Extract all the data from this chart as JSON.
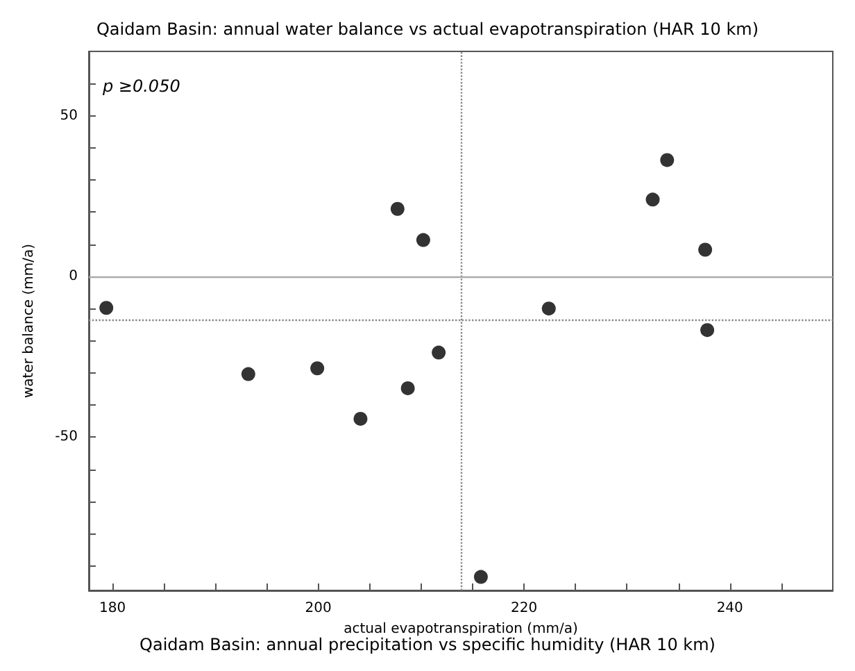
{
  "chart_data": {
    "type": "scatter",
    "title": "Qaidam Basin: annual water balance vs actual evapotranspiration (HAR 10 km)",
    "xlabel": "actual evapotranspiration (mm/a)",
    "ylabel": "water balance (mm/a)",
    "annotations": [
      "p ≥0.050",
      "Qaidam Basin: annual precipitation vs specific humidity (HAR 10 km)"
    ],
    "x": [
      179.4,
      193.2,
      199.9,
      204.1,
      207.7,
      208.7,
      210.2,
      211.7,
      215.8,
      222.4,
      232.5,
      233.9,
      237.6,
      237.8
    ],
    "series": [
      {
        "color": "#000000",
        "values": [
          -9.8,
          -30.4,
          -28.6,
          -44.3,
          21.0,
          -34.8,
          11.3,
          -23.7,
          -93.5,
          -10.0,
          23.9,
          36.2,
          8.3,
          -16.7
        ]
      }
    ],
    "xlim": [
      177.7,
      250
    ],
    "ylim": [
      -97.7,
      70
    ],
    "xticks": [
      180,
      {
        "value": 185,
        "label": null
      },
      {
        "value": 190,
        "label": null
      },
      {
        "value": 195,
        "label": null
      },
      200,
      {
        "value": 205,
        "label": null
      },
      {
        "value": 210,
        "label": null
      },
      {
        "value": 215,
        "label": null
      },
      220,
      {
        "value": 225,
        "label": null
      },
      {
        "value": 230,
        "label": null
      },
      {
        "value": 235,
        "label": null
      },
      240,
      {
        "value": 245,
        "label": null
      }
    ],
    "yticks": [
      {
        "value": -90,
        "label": null
      },
      {
        "value": -80,
        "label": null
      },
      {
        "value": -70,
        "label": null
      },
      {
        "value": -60,
        "label": null
      },
      -50,
      {
        "value": -40,
        "label": null
      },
      {
        "value": -30,
        "label": null
      },
      {
        "value": -20,
        "label": null
      },
      {
        "value": -10,
        "label": null
      },
      0,
      {
        "value": 10,
        "label": null
      },
      {
        "value": 20,
        "label": null
      },
      {
        "value": 30,
        "label": null
      },
      {
        "value": 40,
        "label": null
      },
      50,
      {
        "value": 60,
        "label": null
      }
    ],
    "ref_lines": [
      {
        "axis": "x",
        "value": 213.9,
        "line_style": "dotted",
        "color": "#888888"
      },
      {
        "axis": "y",
        "value": -13.7,
        "line_style": "dotted",
        "color": "#888888"
      },
      {
        "axis": "y",
        "value": 0,
        "line_style": "solid",
        "color": "#aaaaaa"
      }
    ],
    "marker": "circle",
    "grid": false
  }
}
